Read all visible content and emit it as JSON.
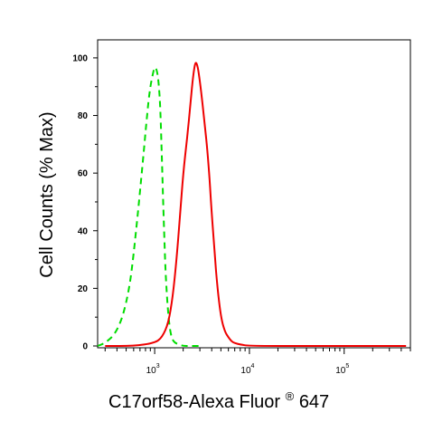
{
  "chart_data": {
    "type": "line",
    "title": "",
    "xlabel_main": "C17orf58-Alexa Fluor",
    "xlabel_sup": "®",
    "xlabel_tail": " 647",
    "ylabel": "Cell Counts (% Max)",
    "x_scale": "log",
    "xlim": [
      250,
      500000
    ],
    "ylim": [
      0,
      105
    ],
    "yticks": [
      {
        "value": 0,
        "label": "0"
      },
      {
        "value": 20,
        "label": "20"
      },
      {
        "value": 40,
        "label": "40"
      },
      {
        "value": 60,
        "label": "60"
      },
      {
        "value": 80,
        "label": "80"
      },
      {
        "value": 100,
        "label": "100"
      }
    ],
    "xticks": [
      {
        "value": 1000,
        "base": "10",
        "exp": "3"
      },
      {
        "value": 10000,
        "base": "10",
        "exp": "4"
      },
      {
        "value": 100000,
        "base": "10",
        "exp": "5"
      }
    ],
    "grid": false,
    "legend": "none",
    "series": [
      {
        "color": "#00dd00",
        "dash": "dashed",
        "x": [
          250,
          300,
          380,
          460,
          540,
          600,
          660,
          720,
          780,
          820,
          860,
          900,
          950,
          1000,
          1050,
          1100,
          1150,
          1200,
          1250,
          1300,
          1360,
          1420,
          1480,
          1550,
          1650,
          1800,
          2000,
          2400,
          3000
        ],
        "y": [
          0,
          1,
          4,
          10,
          20,
          32,
          45,
          58,
          70,
          78,
          85,
          90,
          94,
          97,
          96,
          92,
          82,
          62,
          42,
          26,
          15,
          8,
          4,
          2,
          1,
          0.5,
          0,
          0,
          0
        ]
      },
      {
        "color": "#ee0000",
        "dash": "solid",
        "x": [
          300,
          600,
          1000,
          1200,
          1400,
          1550,
          1700,
          1850,
          2000,
          2200,
          2400,
          2550,
          2700,
          2850,
          3000,
          3200,
          3400,
          3600,
          3800,
          4000,
          4300,
          4600,
          5000,
          5500,
          6000,
          6500,
          7000,
          8000,
          10000,
          50000,
          450000
        ],
        "y": [
          0,
          0,
          1,
          3,
          8,
          17,
          30,
          45,
          60,
          72,
          85,
          94,
          99,
          97,
          92,
          84,
          76,
          68,
          58,
          46,
          32,
          20,
          10,
          5,
          3,
          1.5,
          1,
          0.5,
          0,
          0,
          0
        ]
      }
    ]
  }
}
